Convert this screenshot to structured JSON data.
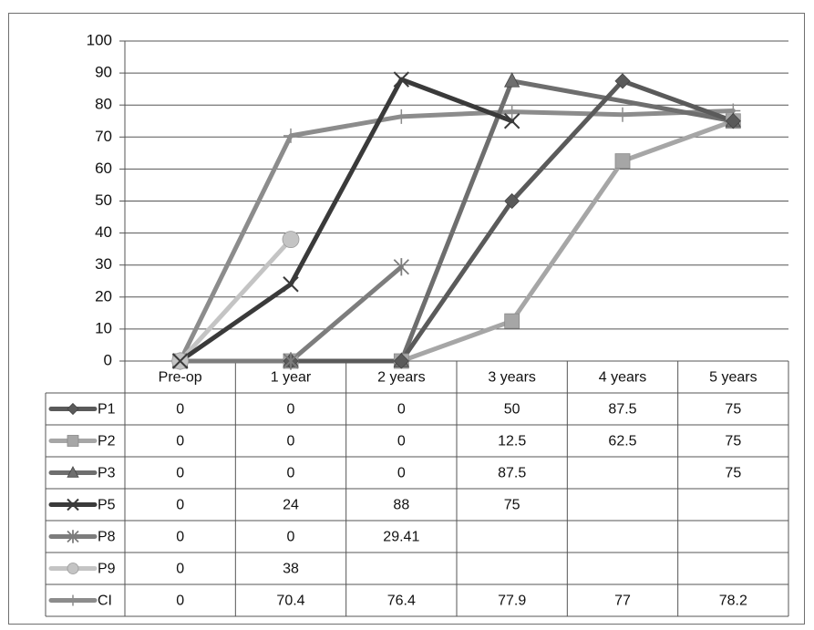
{
  "chart_data": {
    "type": "line",
    "categories": [
      "Pre-op",
      "1 year",
      "2 years",
      "3 years",
      "4 years",
      "5 years"
    ],
    "ylim": [
      0,
      100
    ],
    "yticks": [
      "0",
      "10",
      "20",
      "30",
      "40",
      "50",
      "60",
      "70",
      "80",
      "90",
      "100"
    ],
    "grid": true,
    "legend_position": "bottom-table",
    "series": [
      {
        "name": "P1",
        "marker": "diamond",
        "color": "#5a5a5a",
        "values": [
          0,
          0,
          0,
          50,
          87.5,
          75
        ],
        "labels": [
          "0",
          "0",
          "0",
          "50",
          "87.5",
          "75"
        ]
      },
      {
        "name": "P2",
        "marker": "square",
        "color": "#a6a6a6",
        "values": [
          0,
          0,
          0,
          12.5,
          62.5,
          75
        ],
        "labels": [
          "0",
          "0",
          "0",
          "12.5",
          "62.5",
          "75"
        ]
      },
      {
        "name": "P3",
        "marker": "triangle",
        "color": "#6e6e6e",
        "values": [
          0,
          0,
          0,
          87.5,
          null,
          75
        ],
        "labels": [
          "0",
          "0",
          "0",
          "87.5",
          "",
          "75"
        ]
      },
      {
        "name": "P5",
        "marker": "x",
        "color": "#3a3a3a",
        "values": [
          0,
          24,
          88,
          75,
          null,
          null
        ],
        "labels": [
          "0",
          "24",
          "88",
          "75",
          "",
          ""
        ]
      },
      {
        "name": "P8",
        "marker": "star",
        "color": "#7d7d7d",
        "values": [
          0,
          0,
          29.41,
          null,
          null,
          null
        ],
        "labels": [
          "0",
          "0",
          "29.41",
          "",
          "",
          ""
        ]
      },
      {
        "name": "P9",
        "marker": "circle",
        "color": "#c4c4c4",
        "values": [
          0,
          38,
          null,
          null,
          null,
          null
        ],
        "labels": [
          "0",
          "38",
          "",
          "",
          "",
          ""
        ]
      },
      {
        "name": "CI",
        "marker": "plus",
        "color": "#8c8c8c",
        "values": [
          0,
          70.4,
          76.4,
          77.9,
          77,
          78.2
        ],
        "labels": [
          "0",
          "70.4",
          "76.4",
          "77.9",
          "77",
          "78.2"
        ]
      }
    ]
  }
}
